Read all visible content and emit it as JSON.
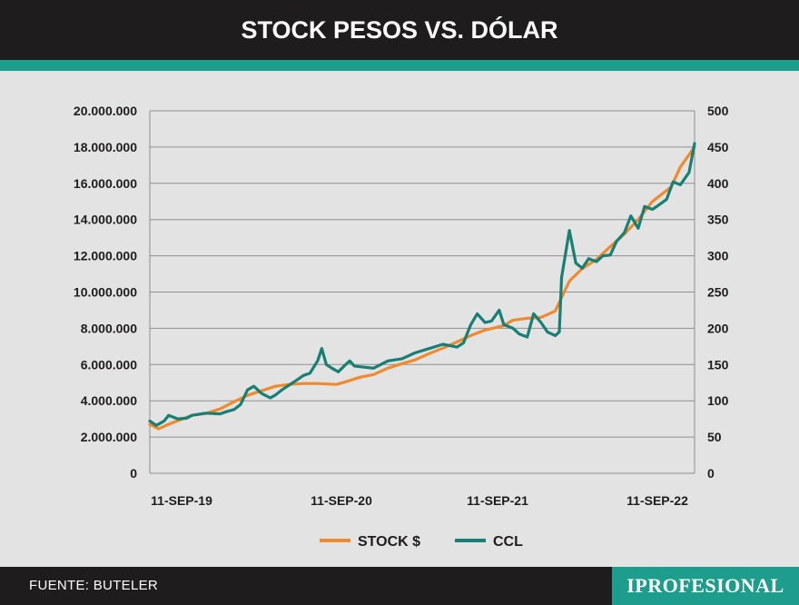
{
  "header": {
    "title": "STOCK PESOS VS. DÓLAR"
  },
  "footer": {
    "source": "FUENTE: BUTELER",
    "brand": "IPROFESIONAL"
  },
  "colors": {
    "stock": "#ef8a2e",
    "ccl": "#177f73",
    "accent": "#1e9c8c",
    "dark": "#1f1c1d",
    "background": "#e3e3e3"
  },
  "chart_data": {
    "type": "line",
    "title": "STOCK PESOS VS. DÓLAR",
    "x_ticks": [
      "11-SEP-19",
      "11-SEP-20",
      "11-SEP-21",
      "11-SEP-22"
    ],
    "y_left": {
      "ylim": [
        0,
        20000000
      ],
      "ticks": [
        "0",
        "2.000.000",
        "4.000.000",
        "6.000.000",
        "8.000.000",
        "10.000.000",
        "12.000.000",
        "14.000.000",
        "16.000.000",
        "18.000.000",
        "20.000.000"
      ]
    },
    "y_right": {
      "ylim": [
        0,
        500
      ],
      "ticks": [
        "0",
        "50",
        "100",
        "150",
        "200",
        "250",
        "300",
        "350",
        "400",
        "450",
        "500"
      ]
    },
    "grid": true,
    "legend_position": "bottom-center",
    "series": [
      {
        "name": "STOCK $",
        "axis": "left",
        "x": [
          "2019-08-01",
          "2019-08-20",
          "2019-09-11",
          "2019-10-01",
          "2019-11-01",
          "2019-12-01",
          "2020-01-01",
          "2020-02-01",
          "2020-03-01",
          "2020-04-01",
          "2020-05-01",
          "2020-06-01",
          "2020-07-01",
          "2020-08-01",
          "2020-09-11",
          "2020-10-01",
          "2020-11-01",
          "2020-12-01",
          "2021-01-01",
          "2021-02-01",
          "2021-03-01",
          "2021-04-01",
          "2021-05-01",
          "2021-06-01",
          "2021-07-01",
          "2021-08-01",
          "2021-09-11",
          "2021-10-01",
          "2021-11-01",
          "2021-12-01",
          "2022-01-01",
          "2022-02-01",
          "2022-03-01",
          "2022-04-01",
          "2022-05-01",
          "2022-06-01",
          "2022-07-01",
          "2022-08-01",
          "2022-09-11",
          "2022-10-01",
          "2022-11-01"
        ],
        "values": [
          2700000,
          2450000,
          2700000,
          2900000,
          3200000,
          3300000,
          3550000,
          3950000,
          4300000,
          4550000,
          4800000,
          4900000,
          4950000,
          4950000,
          4900000,
          5050000,
          5300000,
          5450000,
          5800000,
          6050000,
          6250000,
          6600000,
          6900000,
          7250000,
          7600000,
          7900000,
          8150000,
          8450000,
          8550000,
          8600000,
          8950000,
          10600000,
          11300000,
          11800000,
          12500000,
          13200000,
          14000000,
          15000000,
          15800000,
          16900000,
          18000000
        ]
      },
      {
        "name": "CCL",
        "axis": "right",
        "x": [
          "2019-08-01",
          "2019-08-15",
          "2019-09-01",
          "2019-09-11",
          "2019-10-01",
          "2019-10-20",
          "2019-11-01",
          "2019-12-01",
          "2020-01-01",
          "2020-01-15",
          "2020-02-01",
          "2020-02-15",
          "2020-03-01",
          "2020-03-15",
          "2020-04-01",
          "2020-04-20",
          "2020-05-01",
          "2020-05-15",
          "2020-06-01",
          "2020-06-15",
          "2020-07-01",
          "2020-07-15",
          "2020-08-01",
          "2020-08-10",
          "2020-08-20",
          "2020-09-01",
          "2020-09-15",
          "2020-10-01",
          "2020-10-10",
          "2020-10-20",
          "2020-11-01",
          "2020-12-01",
          "2021-01-01",
          "2021-02-01",
          "2021-03-01",
          "2021-04-01",
          "2021-05-01",
          "2021-06-01",
          "2021-06-15",
          "2021-07-01",
          "2021-07-15",
          "2021-08-01",
          "2021-08-15",
          "2021-09-01",
          "2021-09-11",
          "2021-10-01",
          "2021-10-15",
          "2021-11-01",
          "2021-11-15",
          "2021-12-01",
          "2021-12-15",
          "2022-01-01",
          "2022-01-10",
          "2022-01-15",
          "2022-02-01",
          "2022-02-15",
          "2022-03-01",
          "2022-03-15",
          "2022-04-01",
          "2022-04-15",
          "2022-05-01",
          "2022-05-15",
          "2022-06-01",
          "2022-06-15",
          "2022-07-01",
          "2022-07-15",
          "2022-08-01",
          "2022-08-15",
          "2022-09-01",
          "2022-09-15",
          "2022-10-01",
          "2022-10-20",
          "2022-11-01"
        ],
        "values": [
          72,
          66,
          72,
          80,
          75,
          76,
          80,
          83,
          82,
          85,
          88,
          95,
          115,
          120,
          110,
          104,
          108,
          115,
          122,
          128,
          135,
          138,
          155,
          172,
          150,
          145,
          140,
          150,
          155,
          148,
          147,
          145,
          155,
          158,
          166,
          172,
          178,
          174,
          180,
          205,
          220,
          208,
          210,
          225,
          205,
          200,
          192,
          188,
          220,
          208,
          195,
          190,
          195,
          270,
          335,
          290,
          283,
          296,
          292,
          300,
          301,
          320,
          332,
          355,
          338,
          368,
          364,
          370,
          378,
          402,
          398,
          415,
          455
        ]
      }
    ]
  }
}
